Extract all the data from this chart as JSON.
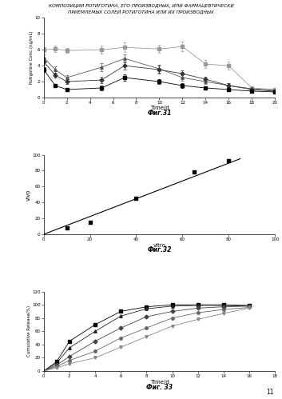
{
  "title_line1": "КОМПОЗИЦИИ РОТИГОТИНА, ЕГО ПРОИЗВОДНЫХ, ИЛИ ФАРМАЦЕВТИЧЕСКИ",
  "title_line2": "ПРИЕМЛЕМЫХ СОЛЕЙ РОТИГОТИНА ИЛИ ИХ ПРОИЗВОДНЫХ",
  "fig31": {
    "caption": "Фиг.31",
    "xlabel": "Time/d",
    "ylabel": "Rotigotine Conc.(ng/mL)",
    "xlim": [
      0,
      20
    ],
    "ylim": [
      0,
      10
    ],
    "xticks": [
      0,
      2,
      4,
      6,
      8,
      10,
      12,
      14,
      16,
      18,
      20
    ],
    "yticks": [
      0,
      2,
      4,
      6,
      8,
      10
    ],
    "series": [
      {
        "x": [
          0,
          1,
          2,
          5,
          7,
          10,
          12,
          14,
          16,
          18,
          20
        ],
        "y": [
          6.0,
          6.1,
          5.9,
          6.0,
          6.3,
          6.1,
          6.4,
          4.2,
          4.0,
          1.2,
          1.0
        ],
        "yerr": [
          0.3,
          0.4,
          0.3,
          0.5,
          0.6,
          0.5,
          0.6,
          0.5,
          0.5,
          0.2,
          0.15
        ],
        "marker": "s",
        "color": "#999999",
        "linestyle": "-"
      },
      {
        "x": [
          0,
          1,
          2,
          5,
          7,
          10,
          12,
          14,
          16,
          18,
          20
        ],
        "y": [
          5.0,
          3.5,
          2.5,
          3.8,
          4.9,
          3.6,
          2.5,
          2.0,
          1.5,
          1.1,
          0.9
        ],
        "yerr": [
          0.4,
          0.4,
          0.3,
          0.5,
          0.5,
          0.5,
          0.4,
          0.3,
          0.3,
          0.2,
          0.15
        ],
        "marker": "^",
        "color": "#555555",
        "linestyle": "-"
      },
      {
        "x": [
          0,
          1,
          2,
          5,
          7,
          10,
          12,
          14,
          16,
          18,
          20
        ],
        "y": [
          4.5,
          2.8,
          2.0,
          2.2,
          4.0,
          3.5,
          3.0,
          2.3,
          1.5,
          1.0,
          0.8
        ],
        "yerr": [
          0.4,
          0.3,
          0.3,
          0.4,
          0.5,
          0.5,
          0.4,
          0.3,
          0.3,
          0.2,
          0.15
        ],
        "marker": "D",
        "color": "#333333",
        "linestyle": "-"
      },
      {
        "x": [
          0,
          1,
          2,
          5,
          7,
          10,
          12,
          14,
          16,
          18,
          20
        ],
        "y": [
          3.5,
          1.5,
          1.0,
          1.2,
          2.5,
          2.0,
          1.5,
          1.2,
          1.0,
          0.8,
          0.7
        ],
        "yerr": [
          0.3,
          0.2,
          0.2,
          0.3,
          0.4,
          0.3,
          0.3,
          0.2,
          0.2,
          0.15,
          0.1
        ],
        "marker": "s",
        "color": "#000000",
        "linestyle": "-"
      }
    ]
  },
  "fig32": {
    "caption": "Фиг.32",
    "xlabel": "vitro",
    "ylabel": "vivo",
    "xlim": [
      0,
      100
    ],
    "ylim": [
      0,
      100
    ],
    "xticks": [
      0,
      20,
      40,
      60,
      80,
      100
    ],
    "yticks": [
      0,
      20,
      40,
      60,
      80,
      100
    ],
    "scatter_x": [
      10,
      20,
      40,
      65,
      80
    ],
    "scatter_y": [
      8,
      15,
      45,
      78,
      92
    ],
    "line_x": [
      0,
      85
    ],
    "line_y": [
      0,
      95
    ]
  },
  "fig33": {
    "caption": "Фиг. 33",
    "xlabel": "Time/d",
    "ylabel": "Cumulative Release(%)",
    "xlim": [
      0,
      18
    ],
    "ylim": [
      0,
      120
    ],
    "xticks": [
      0,
      2,
      4,
      6,
      8,
      10,
      12,
      14,
      16,
      18
    ],
    "yticks": [
      0,
      20,
      40,
      60,
      80,
      100,
      120
    ],
    "series": [
      {
        "x": [
          0,
          1,
          2,
          4,
          6,
          8,
          10,
          12,
          14,
          16
        ],
        "y": [
          0,
          14,
          45,
          70,
          90,
          97,
          100,
          100,
          100,
          99
        ],
        "marker": "s",
        "color": "#000000",
        "linestyle": "-"
      },
      {
        "x": [
          0,
          1,
          2,
          4,
          6,
          8,
          10,
          12,
          14,
          16
        ],
        "y": [
          0,
          12,
          35,
          60,
          83,
          94,
          98,
          99,
          99,
          98
        ],
        "marker": "^",
        "color": "#222222",
        "linestyle": "-"
      },
      {
        "x": [
          0,
          1,
          2,
          4,
          6,
          8,
          10,
          12,
          14,
          16
        ],
        "y": [
          0,
          9,
          22,
          45,
          65,
          82,
          90,
          95,
          97,
          98
        ],
        "marker": "D",
        "color": "#444444",
        "linestyle": "-"
      },
      {
        "x": [
          0,
          1,
          2,
          4,
          6,
          8,
          10,
          12,
          14,
          16
        ],
        "y": [
          0,
          7,
          16,
          30,
          50,
          65,
          80,
          88,
          93,
          96
        ],
        "marker": "o",
        "color": "#666666",
        "linestyle": "-"
      },
      {
        "x": [
          0,
          1,
          2,
          4,
          6,
          8,
          10,
          12,
          14,
          16
        ],
        "y": [
          0,
          5,
          11,
          20,
          36,
          52,
          68,
          78,
          87,
          95
        ],
        "marker": "v",
        "color": "#888888",
        "linestyle": "-"
      }
    ]
  },
  "page_number": "11"
}
